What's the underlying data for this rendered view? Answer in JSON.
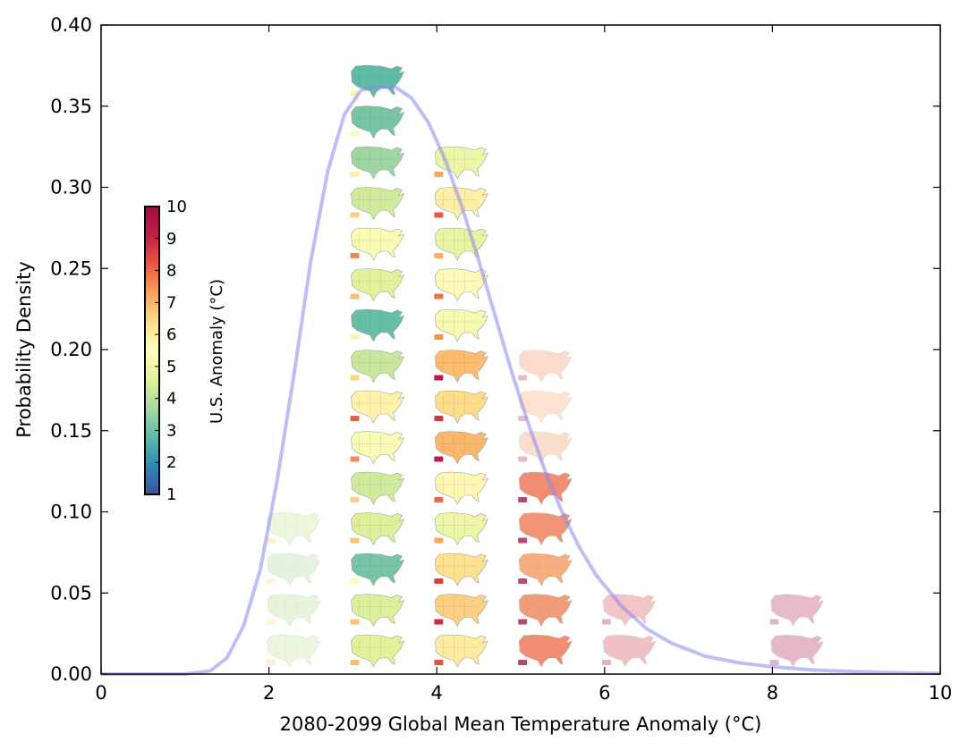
{
  "chart_data": {
    "type": "line",
    "title": "",
    "xlabel": "2080-2099 Global Mean Temperature Anomaly (°C)",
    "ylabel": "Probability Density",
    "xlim": [
      0,
      10
    ],
    "ylim": [
      0,
      0.4
    ],
    "xticks": [
      "0",
      "2",
      "4",
      "6",
      "8",
      "10"
    ],
    "yticks": [
      "0.00",
      "0.05",
      "0.10",
      "0.15",
      "0.20",
      "0.25",
      "0.30",
      "0.35",
      "0.40"
    ],
    "grid": false,
    "series": [
      {
        "color": "#8888ee",
        "x": [
          0,
          1.0,
          1.3,
          1.5,
          1.7,
          1.9,
          2.1,
          2.3,
          2.5,
          2.7,
          2.9,
          3.1,
          3.3,
          3.5,
          3.7,
          3.9,
          4.1,
          4.3,
          4.5,
          4.7,
          4.9,
          5.1,
          5.3,
          5.5,
          5.7,
          5.9,
          6.2,
          6.5,
          6.8,
          7.2,
          7.6,
          8.0,
          8.5,
          9.0,
          9.5,
          10.0
        ],
        "y": [
          0.0,
          0.0,
          0.002,
          0.01,
          0.03,
          0.065,
          0.12,
          0.185,
          0.255,
          0.31,
          0.345,
          0.36,
          0.362,
          0.362,
          0.355,
          0.34,
          0.317,
          0.288,
          0.255,
          0.22,
          0.185,
          0.153,
          0.124,
          0.099,
          0.078,
          0.061,
          0.042,
          0.028,
          0.019,
          0.011,
          0.007,
          0.0045,
          0.0025,
          0.0015,
          0.0008,
          0.0004
        ]
      }
    ],
    "colorbar": {
      "label": "U.S. Anomaly (°C)",
      "ticks": [
        "1",
        "2",
        "3",
        "4",
        "5",
        "6",
        "7",
        "8",
        "9",
        "10"
      ],
      "range": [
        1,
        10
      ],
      "colormap": "Spectral_r",
      "colors": [
        "#3f4fa0",
        "#2e8bb5",
        "#5fbba8",
        "#a6d9a0",
        "#e3f29a",
        "#fffdbd",
        "#fddd8a",
        "#f9a25c",
        "#e9583f",
        "#c12046",
        "#9b0e44"
      ]
    },
    "map_columns": [
      {
        "x": 2.3,
        "anomalies": [
          4.2,
          4.0,
          3.9,
          4.3
        ],
        "opacity": 0.35
      },
      {
        "x": 3.3,
        "anomalies": [
          4.6,
          4.5,
          3.1,
          4.5,
          4.3,
          5.3,
          5.8,
          4.2,
          2.9,
          4.6,
          5.3,
          4.3,
          3.6,
          3.1,
          2.8
        ],
        "opacity": 1.0
      },
      {
        "x": 4.3,
        "anomalies": [
          6.0,
          6.6,
          6.3,
          4.9,
          5.7,
          7.0,
          6.4,
          6.9,
          5.2,
          5.6,
          4.8,
          5.9,
          4.9
        ],
        "opacity": 1.0
      },
      {
        "x": 5.3,
        "anomalies": [
          8.0,
          7.8,
          7.5,
          7.9,
          8.0,
          7.6,
          7.4,
          7.7
        ],
        "opacity": 0.75,
        "faded_count": 3
      },
      {
        "x": 6.3,
        "anomalies": [
          8.8,
          8.6
        ],
        "opacity": 0.3
      },
      {
        "x": 8.3,
        "anomalies": [
          9.5,
          9.4
        ],
        "opacity": 0.3
      }
    ]
  }
}
